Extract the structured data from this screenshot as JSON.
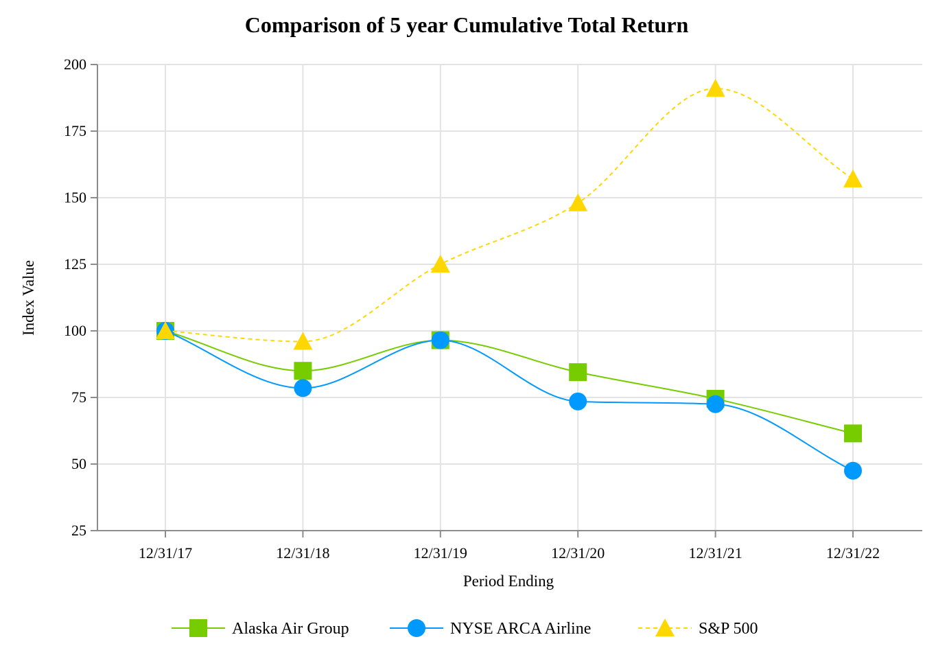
{
  "chart_data": {
    "type": "line",
    "title": "Comparison of 5 year Cumulative Total Return",
    "xlabel": "Period Ending",
    "ylabel": "Index Value",
    "categories": [
      "12/31/17",
      "12/31/18",
      "12/31/19",
      "12/31/20",
      "12/31/21",
      "12/31/22"
    ],
    "ylim": [
      25,
      200
    ],
    "yticks": [
      25,
      50,
      75,
      100,
      125,
      150,
      175,
      200
    ],
    "grid": true,
    "legend": "bottom",
    "series": [
      {
        "name": "Alaska Air Group",
        "values": [
          100,
          85,
          96.5,
          84.5,
          74.5,
          61.5
        ],
        "color": "#77cc00",
        "marker": "square",
        "dash": false
      },
      {
        "name": "NYSE ARCA Airline",
        "values": [
          100,
          78.5,
          96.5,
          73.5,
          72.5,
          47.5
        ],
        "color": "#0099ff",
        "marker": "circle",
        "dash": false
      },
      {
        "name": "S&P 500",
        "values": [
          100,
          96,
          125,
          148,
          191,
          157
        ],
        "color": "#ffd700",
        "marker": "triangle",
        "dash": true
      }
    ]
  }
}
